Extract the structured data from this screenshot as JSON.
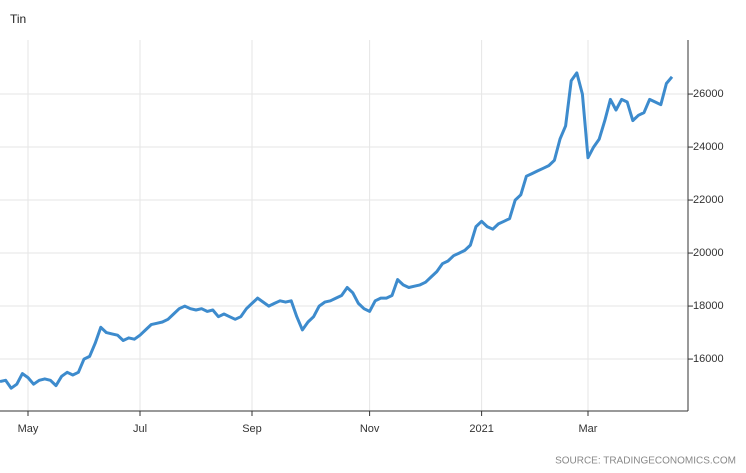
{
  "chart_data": {
    "type": "line",
    "title": "Tin",
    "source": "SOURCE: TRADINGECONOMICS.COM",
    "categories": [
      null,
      null,
      null,
      null,
      null,
      "May",
      null,
      null,
      null,
      null,
      null,
      null,
      null,
      null,
      null,
      null,
      null,
      null,
      null,
      null,
      null,
      null,
      null,
      null,
      null,
      "Jul",
      null,
      null,
      null,
      null,
      null,
      null,
      null,
      null,
      null,
      null,
      null,
      null,
      null,
      null,
      null,
      null,
      null,
      null,
      null,
      "Sep",
      null,
      null,
      null,
      null,
      null,
      null,
      null,
      null,
      null,
      null,
      null,
      null,
      null,
      null,
      null,
      null,
      null,
      null,
      null,
      null,
      "Nov",
      null,
      null,
      null,
      null,
      null,
      null,
      null,
      null,
      null,
      null,
      null,
      null,
      null,
      null,
      null,
      null,
      null,
      null,
      null,
      "2021",
      null,
      null,
      null,
      null,
      null,
      null,
      null,
      null,
      null,
      null,
      null,
      null,
      null,
      null,
      null,
      null,
      null,
      null,
      "Mar",
      null,
      null,
      null,
      null,
      null,
      null,
      null,
      null,
      null,
      null,
      null,
      null,
      null,
      null,
      null
    ],
    "series": [
      {
        "name": "Tin",
        "color": "#3d8bcd",
        "values": [
          15150,
          15200,
          14900,
          15050,
          15450,
          15300,
          15050,
          15200,
          15250,
          15200,
          15000,
          15350,
          15500,
          15400,
          15500,
          16000,
          16100,
          16600,
          17200,
          17000,
          16950,
          16900,
          16700,
          16800,
          16750,
          16900,
          17100,
          17300,
          17350,
          17400,
          17500,
          17700,
          17900,
          18000,
          17900,
          17850,
          17900,
          17800,
          17850,
          17600,
          17700,
          17600,
          17500,
          17600,
          17900,
          18100,
          18300,
          18150,
          18000,
          18100,
          18200,
          18150,
          18200,
          17600,
          17100,
          17400,
          17600,
          18000,
          18150,
          18200,
          18300,
          18400,
          18700,
          18500,
          18100,
          17900,
          17800,
          18200,
          18300,
          18300,
          18400,
          19000,
          18800,
          18700,
          18750,
          18800,
          18900,
          19100,
          19300,
          19600,
          19700,
          19900,
          20000,
          20100,
          20300,
          21000,
          21200,
          21000,
          20900,
          21100,
          21200,
          21300,
          22000,
          22200,
          22900,
          23000,
          23100,
          23200,
          23300,
          23500,
          24300,
          24800,
          26500,
          26800,
          26000,
          23600,
          24000,
          24300,
          25000,
          25800,
          25400,
          25800,
          25700,
          25000,
          25200,
          25300,
          25800,
          25700,
          25600,
          26400,
          26650
        ]
      }
    ],
    "ylim": [
      14040,
      28040
    ],
    "yticks": [
      16000,
      18000,
      20000,
      22000,
      24000,
      26000
    ],
    "grid": true
  }
}
